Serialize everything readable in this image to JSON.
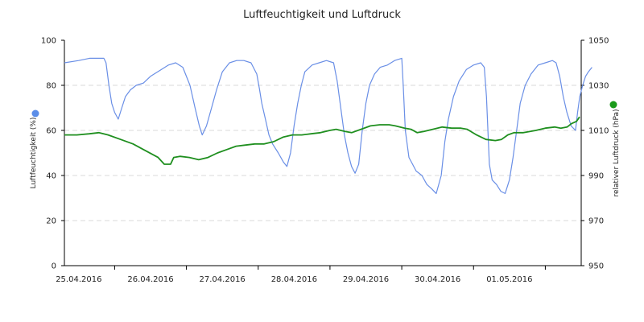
{
  "chart_data": {
    "type": "line",
    "title": "Luftfeuchtigkeit und Luftdruck",
    "x_tick_labels": [
      "25.04.2016",
      "26.04.2016",
      "27.04.2016",
      "28.04.2016",
      "29.04.2016",
      "30.04.2016",
      "01.05.2016"
    ],
    "x_range_days": [
      -0.2,
      7.0
    ],
    "grid": "dashed horizontal",
    "y_left": {
      "label": "Luftfeuchtigkeit (%)",
      "ylim": [
        0,
        100
      ],
      "ticks": [
        "0",
        "20",
        "40",
        "60",
        "80",
        "100"
      ],
      "marker_color": "#5b8de8"
    },
    "y_right": {
      "label": "relativer Luftdruck (hPa)",
      "ylim": [
        950,
        1050
      ],
      "ticks": [
        "950",
        "970",
        "990",
        "1010",
        "1030",
        "1050"
      ],
      "marker_color": "#1a9a1a"
    },
    "series": [
      {
        "axis": "left",
        "color": "#6a8fe6",
        "points": [
          [
            -0.2,
            90
          ],
          [
            0.0,
            91
          ],
          [
            0.15,
            92
          ],
          [
            0.35,
            92
          ],
          [
            0.38,
            90
          ],
          [
            0.42,
            80
          ],
          [
            0.46,
            72
          ],
          [
            0.5,
            68
          ],
          [
            0.55,
            65
          ],
          [
            0.6,
            70
          ],
          [
            0.65,
            75
          ],
          [
            0.72,
            78
          ],
          [
            0.8,
            80
          ],
          [
            0.9,
            81
          ],
          [
            1.0,
            84
          ],
          [
            1.15,
            87
          ],
          [
            1.25,
            89
          ],
          [
            1.35,
            90
          ],
          [
            1.45,
            88
          ],
          [
            1.55,
            80
          ],
          [
            1.62,
            70
          ],
          [
            1.68,
            62
          ],
          [
            1.72,
            58
          ],
          [
            1.78,
            62
          ],
          [
            1.85,
            70
          ],
          [
            1.92,
            78
          ],
          [
            2.0,
            86
          ],
          [
            2.1,
            90
          ],
          [
            2.2,
            91
          ],
          [
            2.3,
            91
          ],
          [
            2.4,
            90
          ],
          [
            2.48,
            85
          ],
          [
            2.52,
            78
          ],
          [
            2.55,
            72
          ],
          [
            2.6,
            65
          ],
          [
            2.65,
            58
          ],
          [
            2.7,
            54
          ],
          [
            2.78,
            50
          ],
          [
            2.85,
            46
          ],
          [
            2.9,
            44
          ],
          [
            2.95,
            50
          ],
          [
            3.0,
            62
          ],
          [
            3.05,
            72
          ],
          [
            3.1,
            80
          ],
          [
            3.15,
            86
          ],
          [
            3.25,
            89
          ],
          [
            3.35,
            90
          ],
          [
            3.45,
            91
          ],
          [
            3.55,
            90
          ],
          [
            3.6,
            82
          ],
          [
            3.65,
            70
          ],
          [
            3.7,
            58
          ],
          [
            3.75,
            50
          ],
          [
            3.8,
            44
          ],
          [
            3.85,
            41
          ],
          [
            3.9,
            45
          ],
          [
            3.95,
            60
          ],
          [
            4.0,
            72
          ],
          [
            4.05,
            80
          ],
          [
            4.12,
            85
          ],
          [
            4.2,
            88
          ],
          [
            4.3,
            89
          ],
          [
            4.4,
            91
          ],
          [
            4.5,
            92
          ],
          [
            4.52,
            80
          ],
          [
            4.55,
            60
          ],
          [
            4.6,
            48
          ],
          [
            4.65,
            45
          ],
          [
            4.7,
            42
          ],
          [
            4.78,
            40
          ],
          [
            4.85,
            36
          ],
          [
            4.92,
            34
          ],
          [
            4.98,
            32
          ],
          [
            5.05,
            40
          ],
          [
            5.1,
            55
          ],
          [
            5.15,
            65
          ],
          [
            5.22,
            75
          ],
          [
            5.3,
            82
          ],
          [
            5.4,
            87
          ],
          [
            5.5,
            89
          ],
          [
            5.6,
            90
          ],
          [
            5.65,
            88
          ],
          [
            5.68,
            75
          ],
          [
            5.7,
            60
          ],
          [
            5.72,
            45
          ],
          [
            5.76,
            38
          ],
          [
            5.82,
            36
          ],
          [
            5.88,
            33
          ],
          [
            5.94,
            32
          ],
          [
            6.0,
            38
          ],
          [
            6.05,
            48
          ],
          [
            6.1,
            60
          ],
          [
            6.15,
            72
          ],
          [
            6.22,
            80
          ],
          [
            6.3,
            85
          ],
          [
            6.4,
            89
          ],
          [
            6.5,
            90
          ],
          [
            6.6,
            91
          ],
          [
            6.65,
            90
          ],
          [
            6.7,
            84
          ],
          [
            6.75,
            75
          ],
          [
            6.8,
            68
          ],
          [
            6.86,
            62
          ],
          [
            6.92,
            60
          ],
          [
            6.95,
            68
          ],
          [
            6.98,
            75
          ],
          [
            7.02,
            80
          ],
          [
            7.06,
            84
          ],
          [
            7.1,
            86
          ],
          [
            7.15,
            88
          ]
        ]
      },
      {
        "axis": "right",
        "color": "#1f8f1f",
        "points": [
          [
            -0.2,
            1008
          ],
          [
            0.0,
            1008
          ],
          [
            0.2,
            1008.5
          ],
          [
            0.35,
            1009
          ],
          [
            0.5,
            1008
          ],
          [
            0.7,
            1006
          ],
          [
            0.9,
            1004
          ],
          [
            1.1,
            1001
          ],
          [
            1.3,
            998
          ],
          [
            1.4,
            995
          ],
          [
            1.5,
            995
          ],
          [
            1.55,
            998
          ],
          [
            1.65,
            998.5
          ],
          [
            1.8,
            998
          ],
          [
            1.95,
            997
          ],
          [
            2.1,
            998
          ],
          [
            2.25,
            1000
          ],
          [
            2.4,
            1001.5
          ],
          [
            2.55,
            1003
          ],
          [
            2.7,
            1003.5
          ],
          [
            2.85,
            1004
          ],
          [
            3.0,
            1004
          ],
          [
            3.15,
            1005
          ],
          [
            3.3,
            1007
          ],
          [
            3.45,
            1008
          ],
          [
            3.6,
            1008
          ],
          [
            3.75,
            1008.5
          ],
          [
            3.9,
            1009
          ],
          [
            4.05,
            1010
          ],
          [
            4.15,
            1010.5
          ],
          [
            4.3,
            1009.5
          ],
          [
            4.4,
            1009
          ],
          [
            4.55,
            1010.5
          ],
          [
            4.7,
            1012
          ],
          [
            4.85,
            1012.5
          ],
          [
            5.0,
            1012.5
          ],
          [
            5.1,
            1012
          ],
          [
            5.25,
            1011
          ],
          [
            5.35,
            1010.5
          ],
          [
            5.45,
            1009
          ],
          [
            5.55,
            1009.5
          ],
          [
            5.7,
            1010.5
          ],
          [
            5.85,
            1011.5
          ],
          [
            6.0,
            1011
          ],
          [
            6.15,
            1011
          ],
          [
            6.25,
            1010.5
          ],
          [
            6.4,
            1008
          ],
          [
            6.55,
            1006
          ],
          [
            6.7,
            1005.5
          ],
          [
            6.8,
            1006
          ],
          [
            6.9,
            1008
          ],
          [
            7.0,
            1009
          ],
          [
            7.15,
            1009
          ],
          [
            7.35,
            1010
          ],
          [
            7.5,
            1011
          ],
          [
            7.65,
            1011.5
          ],
          [
            7.75,
            1011
          ],
          [
            7.85,
            1011.5
          ],
          [
            7.92,
            1013
          ],
          [
            8.0,
            1014
          ],
          [
            8.05,
            1016
          ]
        ]
      }
    ]
  }
}
